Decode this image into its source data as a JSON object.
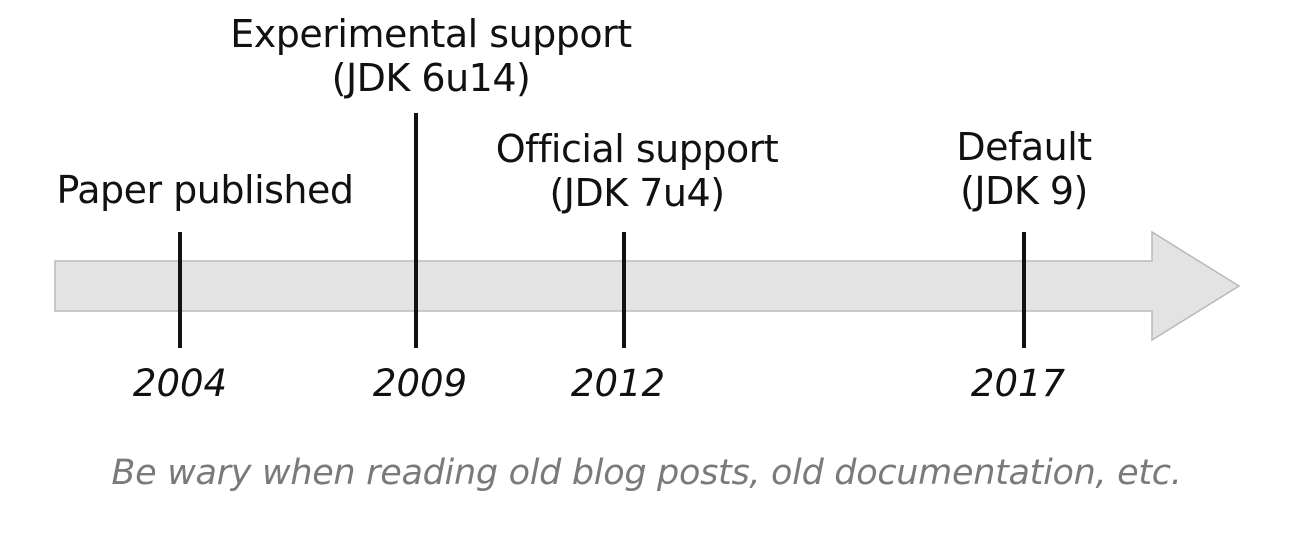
{
  "timeline": {
    "events": [
      {
        "label_line1": "Paper published",
        "label_line2": "",
        "year": "2004"
      },
      {
        "label_line1": "Experimental support",
        "label_line2": "(JDK 6u14)",
        "year": "2009"
      },
      {
        "label_line1": "Official support",
        "label_line2": "(JDK 7u4)",
        "year": "2012"
      },
      {
        "label_line1": "Default",
        "label_line2": "(JDK 9)",
        "year": "2017"
      }
    ]
  },
  "caption": "Be wary when reading old blog posts, old documentation, etc.",
  "colors": {
    "arrow_fill": "#e3e3e3",
    "arrow_stroke": "#b9b9b9",
    "tick": "#111111",
    "caption": "#7a7a7a"
  }
}
